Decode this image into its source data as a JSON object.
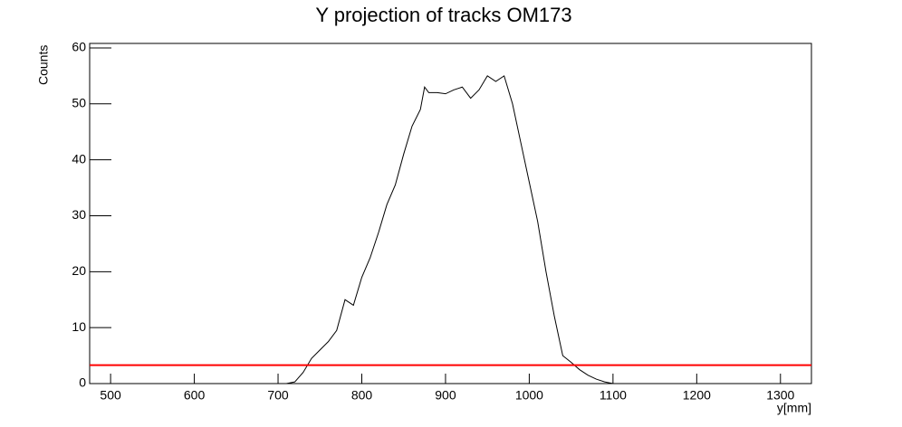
{
  "chart_data": {
    "type": "line",
    "title": "Y projection of tracks OM173",
    "x_label": "y[mm]",
    "y_label": "Counts",
    "x": [
      710,
      720,
      730,
      740,
      750,
      760,
      770,
      780,
      790,
      800,
      810,
      820,
      830,
      840,
      850,
      860,
      870,
      875,
      880,
      890,
      900,
      910,
      920,
      930,
      940,
      950,
      960,
      970,
      980,
      990,
      1000,
      1010,
      1020,
      1030,
      1040,
      1050,
      1060,
      1070,
      1080,
      1090,
      1100
    ],
    "values": [
      0,
      0.3,
      2,
      4.5,
      6,
      7.5,
      9.5,
      15,
      14,
      19,
      22.5,
      27,
      32,
      35.5,
      41,
      46,
      49,
      53,
      52,
      52,
      51.8,
      52.5,
      53,
      51,
      52.5,
      55,
      54,
      55,
      50,
      43,
      36,
      29,
      20,
      12,
      5,
      3.8,
      2.5,
      1.5,
      0.8,
      0.3,
      0
    ],
    "color": "#000000",
    "hline": {
      "value": 3.3,
      "color": "#ff0000"
    },
    "xlim": [
      475,
      1337
    ],
    "ylim": [
      0,
      60.8
    ],
    "xticks": [
      500,
      600,
      700,
      800,
      900,
      1000,
      1100,
      1200,
      1300
    ],
    "yticks": [
      0,
      10,
      20,
      30,
      40,
      50,
      60
    ]
  }
}
